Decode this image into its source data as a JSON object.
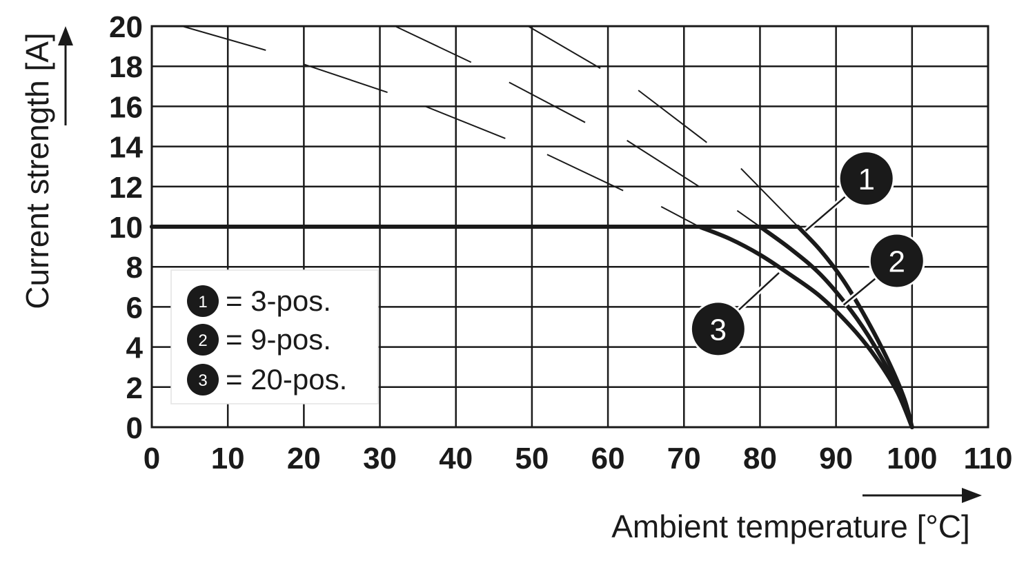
{
  "chart_data": {
    "type": "line",
    "xlabel": "Ambient temperature [°C]",
    "ylabel": "Current strength [A]",
    "xlim": [
      0,
      110
    ],
    "ylim": [
      0,
      20
    ],
    "x_ticks": [
      "0",
      "10",
      "20",
      "30",
      "40",
      "50",
      "60",
      "70",
      "80",
      "90",
      "100",
      "110"
    ],
    "y_ticks": [
      "0",
      "2",
      "4",
      "6",
      "8",
      "10",
      "12",
      "14",
      "16",
      "18",
      "20"
    ],
    "grid": true,
    "legend": {
      "placement": "bottom-left",
      "entries": [
        {
          "marker": "1",
          "label": "= 3-pos."
        },
        {
          "marker": "2",
          "label": "= 9-pos."
        },
        {
          "marker": "3",
          "label": "= 20-pos."
        }
      ]
    },
    "series": [
      {
        "marker": "1",
        "x": [
          0,
          85,
          88,
          91,
          94,
          97,
          99,
          100
        ],
        "y": [
          10,
          10,
          8.8,
          7.3,
          5.4,
          3.2,
          1.4,
          0
        ]
      },
      {
        "marker": "2",
        "x": [
          0,
          80,
          84,
          88,
          92,
          95,
          98,
          100
        ],
        "y": [
          10,
          10,
          8.9,
          7.6,
          5.8,
          4.1,
          2.0,
          0
        ]
      },
      {
        "marker": "3",
        "x": [
          0,
          72,
          76,
          80,
          84,
          88,
          92,
          95,
          98,
          100
        ],
        "y": [
          10,
          10,
          9.4,
          8.6,
          7.6,
          6.5,
          5.0,
          3.6,
          1.8,
          0
        ]
      }
    ],
    "derating_guides": [
      {
        "x": [
          4,
          15
        ],
        "y": [
          20,
          18.8
        ]
      },
      {
        "x": [
          20,
          31
        ],
        "y": [
          18.1,
          16.7
        ]
      },
      {
        "x": [
          32,
          42
        ],
        "y": [
          20,
          18.2
        ]
      },
      {
        "x": [
          36,
          46.5
        ],
        "y": [
          16,
          14.4
        ]
      },
      {
        "x": [
          47,
          57
        ],
        "y": [
          17.2,
          15.2
        ]
      },
      {
        "x": [
          49.5,
          59
        ],
        "y": [
          20,
          17.9
        ]
      },
      {
        "x": [
          52,
          62
        ],
        "y": [
          13.6,
          11.8
        ]
      },
      {
        "x": [
          62.5,
          72
        ],
        "y": [
          14.3,
          12
        ]
      },
      {
        "x": [
          64,
          73
        ],
        "y": [
          16.8,
          14.2
        ]
      },
      {
        "x": [
          67,
          72
        ],
        "y": [
          11,
          10
        ]
      },
      {
        "x": [
          77,
          80
        ],
        "y": [
          10.8,
          10
        ]
      },
      {
        "x": [
          77.5,
          85
        ],
        "y": [
          12.9,
          10
        ]
      }
    ],
    "annotations": [
      {
        "marker": "1",
        "x": 94,
        "y": 12.4,
        "target_x": 86,
        "target_y": 9.8
      },
      {
        "marker": "2",
        "x": 98,
        "y": 8.3,
        "target_x": 91,
        "target_y": 6.1
      },
      {
        "marker": "3",
        "x": 74.5,
        "y": 4.9,
        "target_x": 82.5,
        "target_y": 7.7
      }
    ]
  }
}
